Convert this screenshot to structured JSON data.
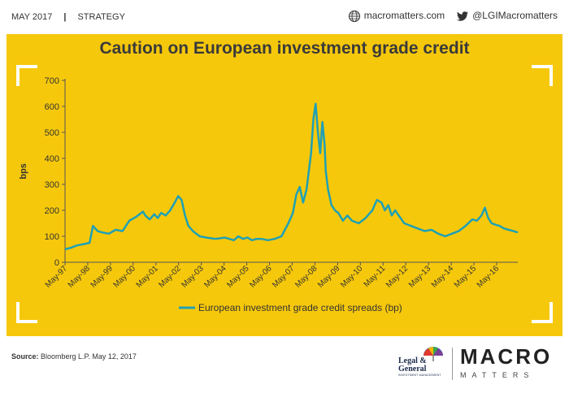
{
  "header": {
    "date": "MAY 2017",
    "separator": "|",
    "section": "STRATEGY",
    "website": "macromatters.com",
    "twitter": "@LGIMacromatters",
    "website_icon": "globe-icon",
    "twitter_icon": "bird-icon"
  },
  "footer": {
    "source_label": "Source:",
    "source_text": "Bloomberg L.P. May 12, 2017",
    "lg_logo_line1": "Legal &",
    "lg_logo_line2": "General",
    "lg_logo_sub": "INVESTMENT MANAGEMENT",
    "macro_word": "MACRO",
    "matters_word": "MATTERS"
  },
  "colors": {
    "panel": "#f6c80b",
    "line": "#1fa0b5",
    "corner": "#ffffff"
  },
  "chart_data": {
    "type": "line",
    "title": "Caution on European investment grade credit",
    "ylabel": "bps",
    "xlabel": "",
    "ylim": [
      0,
      700
    ],
    "yticks": [
      0,
      100,
      200,
      300,
      400,
      500,
      600,
      700
    ],
    "xticks": [
      "May-97",
      "May-98",
      "May-99",
      "May-00",
      "May-01",
      "May-02",
      "May-03",
      "May-04",
      "May-05",
      "May-06",
      "May-07",
      "May-08",
      "May-09",
      "May-10",
      "May-11",
      "May-12",
      "May-13",
      "May-14",
      "May-15",
      "May-16"
    ],
    "grid": false,
    "legend_position": "bottom",
    "series": [
      {
        "name": "European investment grade credit spreads (bp)",
        "x": [
          1997.37,
          1997.6,
          1997.9,
          1998.2,
          1998.45,
          1998.6,
          1998.8,
          1999.0,
          1999.3,
          1999.6,
          1999.9,
          2000.2,
          2000.5,
          2000.8,
          2000.9,
          2001.1,
          2001.3,
          2001.45,
          2001.6,
          2001.8,
          2002.0,
          2002.2,
          2002.35,
          2002.5,
          2002.65,
          2002.8,
          2003.0,
          2003.3,
          2003.6,
          2004.0,
          2004.4,
          2004.8,
          2005.0,
          2005.2,
          2005.4,
          2005.6,
          2005.8,
          2006.0,
          2006.3,
          2006.6,
          2006.9,
          2007.2,
          2007.4,
          2007.55,
          2007.7,
          2007.85,
          2008.0,
          2008.1,
          2008.2,
          2008.3,
          2008.4,
          2008.5,
          2008.6,
          2008.7,
          2008.8,
          2008.85,
          2008.95,
          2009.1,
          2009.25,
          2009.4,
          2009.6,
          2009.8,
          2010.0,
          2010.3,
          2010.6,
          2010.9,
          2011.1,
          2011.3,
          2011.45,
          2011.6,
          2011.75,
          2011.9,
          2012.1,
          2012.3,
          2012.6,
          2012.9,
          2013.2,
          2013.5,
          2013.8,
          2014.1,
          2014.4,
          2014.7,
          2015.0,
          2015.3,
          2015.5,
          2015.7,
          2015.85,
          2016.0,
          2016.15,
          2016.3,
          2016.5,
          2016.7,
          2016.9,
          2017.1,
          2017.3
        ],
        "y": [
          50,
          55,
          65,
          70,
          75,
          140,
          120,
          115,
          110,
          125,
          120,
          160,
          175,
          195,
          180,
          165,
          185,
          170,
          190,
          180,
          200,
          230,
          255,
          240,
          180,
          140,
          120,
          100,
          95,
          90,
          95,
          85,
          100,
          90,
          95,
          85,
          90,
          90,
          85,
          90,
          100,
          150,
          190,
          260,
          290,
          230,
          280,
          350,
          420,
          550,
          610,
          500,
          420,
          540,
          450,
          350,
          280,
          220,
          200,
          190,
          160,
          180,
          160,
          150,
          170,
          200,
          240,
          230,
          200,
          220,
          180,
          200,
          175,
          150,
          140,
          130,
          120,
          125,
          110,
          100,
          110,
          120,
          140,
          165,
          160,
          180,
          210,
          170,
          150,
          145,
          140,
          130,
          125,
          120,
          115
        ]
      }
    ]
  }
}
